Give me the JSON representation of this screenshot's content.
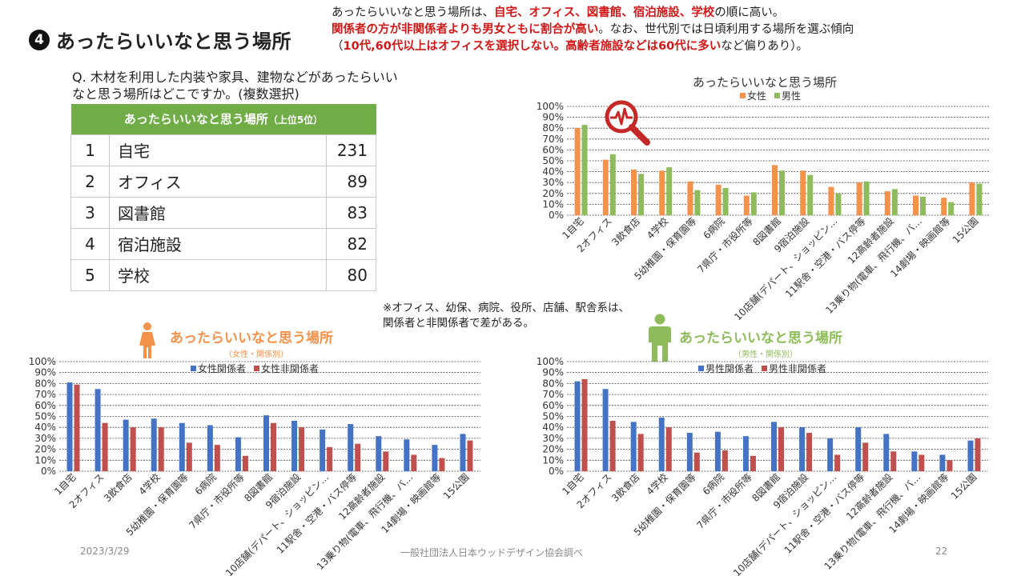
{
  "slide": {
    "number_mark": "4",
    "title": "あったらいいなと思う場所",
    "summary": {
      "line1_pre": "あったらいいなと思う場所は、",
      "line1_red": "自宅、オフィス、図書館、宿泊施設、学校",
      "line1_post": "の順に高い。",
      "line2_red": "関係者の方が非関係者よりも男女ともに割合が高い",
      "line2_post": "。なお、世代別では日頃利用する場所を選ぶ傾向",
      "line3_pre": "（",
      "line3_red": "10代,60代以上はオフィスを選択しない。高齢者施設などは60代に多い",
      "line3_post": "など偏りあり）。"
    },
    "question": "Q. 木材を利用した内装や家具、建物などがあったらいいなと思う場所はどこですか。(複数選択)",
    "note": "※オフィス、幼保、病院、役所、店舗、駅舎系は、関係者と非関係者で差がある。",
    "footer_date": "2023/3/29",
    "footer_org": "一般社団法人日本ウッドデザイン協会調べ",
    "footer_page": "22",
    "colors": {
      "accent_red": "#d01818",
      "table_header": "#70ad47",
      "female_orange": "#f4914a",
      "male_green": "#8fbc5a",
      "kankei_blue": "#4472c4",
      "hikankei_red": "#c0504d",
      "icon_red": "#c62828"
    },
    "table": {
      "header_main": "あったらいいなと思う場所",
      "header_sub": "（上位5位）",
      "rows": [
        {
          "rank": "1",
          "name": "自宅",
          "value": "231"
        },
        {
          "rank": "2",
          "name": "オフィス",
          "value": "89"
        },
        {
          "rank": "3",
          "name": "図書館",
          "value": "83"
        },
        {
          "rank": "4",
          "name": "宿泊施設",
          "value": "82"
        },
        {
          "rank": "5",
          "name": "学校",
          "value": "80"
        }
      ]
    },
    "panel_female": {
      "title": "あったらいいなと思う場所",
      "sub": "（女性・関係別）",
      "icon": "female-person-icon"
    },
    "panel_male": {
      "title": "あったらいいなと思う場所",
      "sub": "（男性・関係別）",
      "icon": "male-person-icon"
    },
    "magnifier_icon": "magnifier-pulse-icon"
  },
  "chart_data": [
    {
      "type": "bar",
      "title": "あったらいいなと思う場所",
      "categories": [
        "1自宅",
        "2オフィス",
        "3飲食店",
        "4学校",
        "5幼稚園・保育園等",
        "6病院",
        "7県庁・市役所等",
        "8図書館",
        "9宿泊施設",
        "10店舗(デパート、ショッピン…",
        "11駅舎・空港・バス停等",
        "12高齢者施設",
        "13乗り物(電車、飛行機、バ…",
        "14劇場・映画館等",
        "15公園"
      ],
      "series": [
        {
          "name": "女性",
          "color": "#f4914a",
          "values": [
            0.8,
            0.51,
            0.42,
            0.41,
            0.31,
            0.28,
            0.18,
            0.46,
            0.41,
            0.26,
            0.3,
            0.22,
            0.18,
            0.16,
            0.3
          ]
        },
        {
          "name": "男性",
          "color": "#8fbc5a",
          "values": [
            0.83,
            0.56,
            0.38,
            0.44,
            0.23,
            0.25,
            0.21,
            0.41,
            0.37,
            0.2,
            0.31,
            0.24,
            0.17,
            0.12,
            0.29
          ]
        }
      ],
      "yticks": [
        "0%",
        "10%",
        "20%",
        "30%",
        "40%",
        "50%",
        "60%",
        "70%",
        "80%",
        "90%",
        "100%"
      ],
      "ylim": [
        0,
        1
      ],
      "legend": "top",
      "grid": true
    },
    {
      "type": "bar",
      "title": "",
      "categories": [
        "1自宅",
        "2オフィス",
        "3飲食店",
        "4学校",
        "5幼稚園・保育園等",
        "6病院",
        "7県庁・市役所等",
        "8図書館",
        "9宿泊施設",
        "10店舗(デパート、ショッピン…",
        "11駅舎・空港・バス停等",
        "12高齢者施設",
        "13乗り物(電車、飛行機、バ…",
        "14劇場・映画館等",
        "15公園"
      ],
      "series": [
        {
          "name": "女性関係者",
          "color": "#4472c4",
          "values": [
            0.81,
            0.75,
            0.47,
            0.48,
            0.44,
            0.42,
            0.31,
            0.51,
            0.46,
            0.38,
            0.43,
            0.32,
            0.29,
            0.24,
            0.34
          ]
        },
        {
          "name": "女性非関係者",
          "color": "#c0504d",
          "values": [
            0.79,
            0.44,
            0.4,
            0.4,
            0.26,
            0.24,
            0.14,
            0.44,
            0.4,
            0.22,
            0.25,
            0.18,
            0.15,
            0.12,
            0.28
          ]
        }
      ],
      "yticks": [
        "0%",
        "10%",
        "20%",
        "30%",
        "40%",
        "50%",
        "60%",
        "70%",
        "80%",
        "90%",
        "100%"
      ],
      "ylim": [
        0,
        1
      ],
      "legend": "top",
      "grid": true
    },
    {
      "type": "bar",
      "title": "",
      "categories": [
        "1自宅",
        "2オフィス",
        "3飲食店",
        "4学校",
        "5幼稚園・保育園等",
        "6病院",
        "7県庁・市役所等",
        "8図書館",
        "9宿泊施設",
        "10店舗(デパート、ショッピン…",
        "11駅舎・空港・バス停等",
        "12高齢者施設",
        "13乗り物(電車、飛行機、バ…",
        "14劇場・映画館等",
        "15公園"
      ],
      "series": [
        {
          "name": "男性関係者",
          "color": "#4472c4",
          "values": [
            0.82,
            0.75,
            0.45,
            0.49,
            0.35,
            0.36,
            0.32,
            0.45,
            0.4,
            0.3,
            0.4,
            0.34,
            0.18,
            0.15,
            0.28
          ]
        },
        {
          "name": "男性非関係者",
          "color": "#c0504d",
          "values": [
            0.84,
            0.46,
            0.34,
            0.4,
            0.17,
            0.19,
            0.14,
            0.4,
            0.35,
            0.15,
            0.26,
            0.18,
            0.15,
            0.1,
            0.3
          ]
        }
      ],
      "yticks": [
        "0%",
        "10%",
        "20%",
        "30%",
        "40%",
        "50%",
        "60%",
        "70%",
        "80%",
        "90%",
        "100%"
      ],
      "ylim": [
        0,
        1
      ],
      "legend": "top",
      "grid": true
    }
  ]
}
